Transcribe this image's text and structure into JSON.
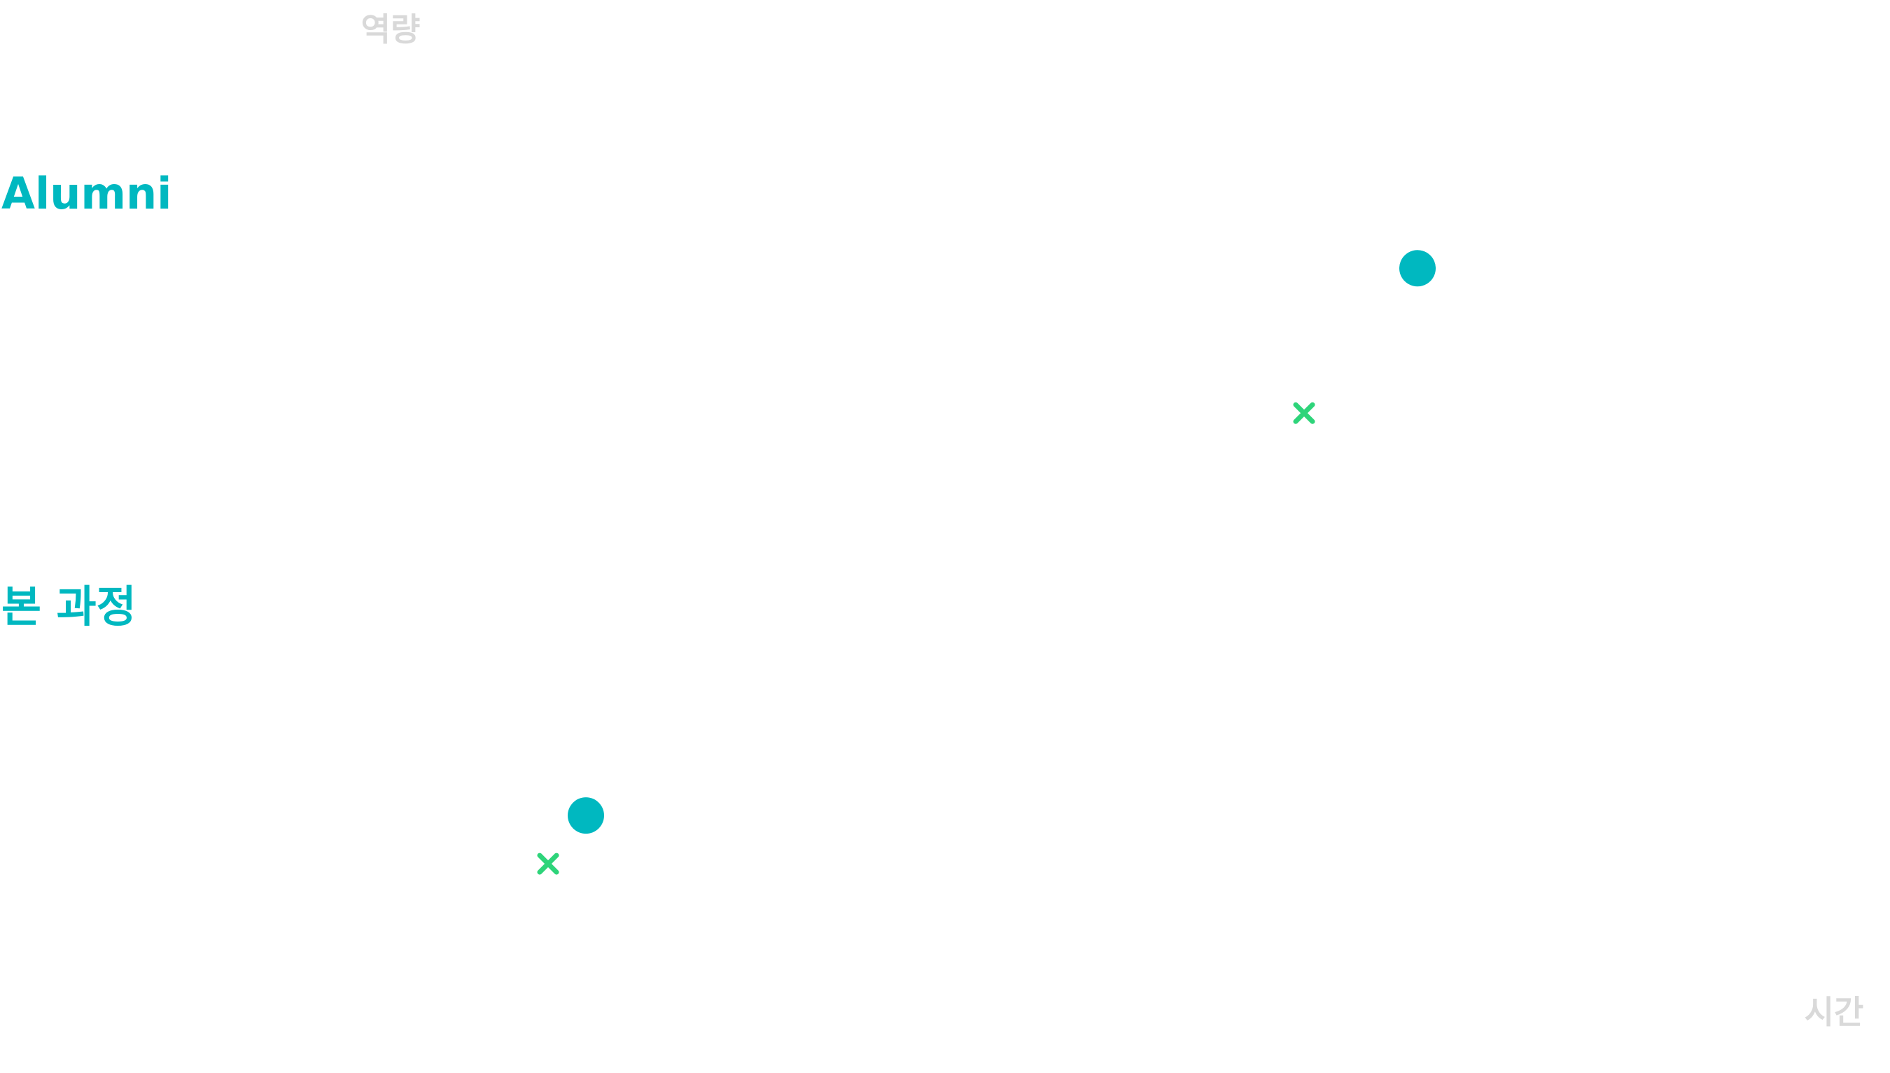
{
  "chart_data": {
    "type": "scatter",
    "title": "",
    "xlabel": "시간",
    "ylabel": "역량",
    "xlim": [
      0,
      100
    ],
    "ylim": [
      0,
      100
    ],
    "grid": false,
    "legend": "none",
    "row_labels": [
      "Alumni",
      "본 과정"
    ],
    "series": [
      {
        "marker": "circle",
        "color": "#00b8c0",
        "points": [
          {
            "x": 31,
            "y": 24
          },
          {
            "x": 75,
            "y": 75
          }
        ]
      },
      {
        "marker": "x",
        "color": "#2ed47a",
        "points": [
          {
            "x": 29,
            "y": 19.5
          },
          {
            "x": 69,
            "y": 61.5
          }
        ]
      }
    ]
  },
  "colors": {
    "accent": "#00b8c0",
    "secondary": "#2ed47a",
    "axis_text": "#d9d9d9"
  }
}
